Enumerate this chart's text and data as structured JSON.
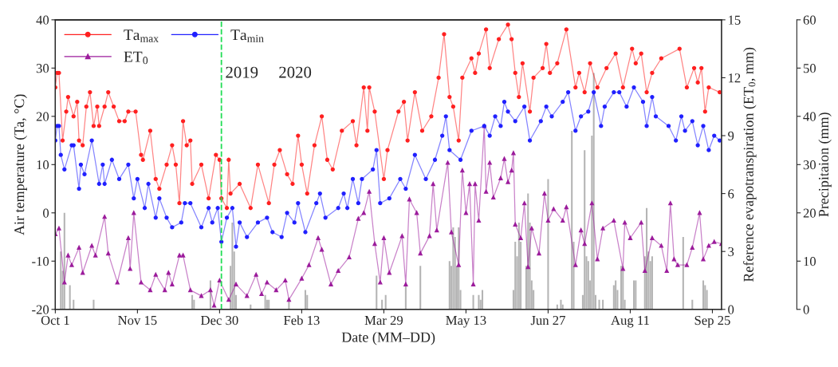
{
  "chart_data": {
    "type": "line",
    "xlabel": "Date (MM–DD)",
    "ylabel": "Air temperature (Ta, °C)",
    "y2label": "Reference evapotranspiration (ET$_{0}$, mm)",
    "y3label": "Precipitaion (mm)",
    "annotations": [
      "2019",
      "2020"
    ],
    "xlim": [
      "2019-10-01",
      "2020-09-30"
    ],
    "xticks": [
      {
        "value": "2019-10-01",
        "label": "Oct 1"
      },
      {
        "value": "2019-11-15",
        "label": "Nov 15"
      },
      {
        "value": "2019-12-30",
        "label": "Dec 30"
      },
      {
        "value": "2020-02-13",
        "label": "Feb 13"
      },
      {
        "value": "2020-03-29",
        "label": "Mar 29"
      },
      {
        "value": "2020-05-13",
        "label": "May 13"
      },
      {
        "value": "2020-06-27",
        "label": "Jun 27"
      },
      {
        "value": "2020-08-11",
        "label": "Aug 11"
      },
      {
        "value": "2020-09-25",
        "label": "Sep 25"
      }
    ],
    "ylim": [
      -20,
      40
    ],
    "yticks": [
      -20,
      -10,
      0,
      10,
      20,
      30,
      40
    ],
    "y2lim": [
      0,
      15
    ],
    "y2ticks": [
      0,
      3,
      6,
      9,
      12,
      15
    ],
    "y3lim": [
      0,
      60
    ],
    "y3ticks": [
      0,
      10,
      20,
      30,
      40,
      50,
      60
    ],
    "legend": "top left",
    "ref_lines": [
      {
        "axis": "x",
        "value": "2019-12-31",
        "color": "#22dd55",
        "line_style": "dashed"
      }
    ],
    "series": [
      {
        "type": "bar",
        "axis": "y3",
        "color": "#b4b4b4",
        "x": [
          "2019-10-04",
          "2019-10-05",
          "2019-10-06",
          "2019-10-09",
          "2019-10-11",
          "2019-10-22",
          "2019-12-15",
          "2019-12-16",
          "2019-12-25",
          "2020-01-05",
          "2020-01-06",
          "2020-01-07",
          "2020-01-08",
          "2020-01-16",
          "2020-01-24",
          "2020-01-25",
          "2020-01-26",
          "2020-02-06",
          "2020-02-15",
          "2020-02-16",
          "2020-03-25",
          "2020-03-28",
          "2020-03-30",
          "2020-04-10",
          "2020-04-18",
          "2020-05-04",
          "2020-05-05",
          "2020-05-06",
          "2020-05-07",
          "2020-05-08",
          "2020-05-09",
          "2020-05-10",
          "2020-05-17",
          "2020-05-20",
          "2020-05-21",
          "2020-05-22",
          "2020-06-08",
          "2020-06-09",
          "2020-06-10",
          "2020-06-11",
          "2020-06-12",
          "2020-06-15",
          "2020-06-16",
          "2020-06-17",
          "2020-06-18",
          "2020-06-19",
          "2020-06-27",
          "2020-07-02",
          "2020-07-04",
          "2020-07-05",
          "2020-07-10",
          "2020-07-11",
          "2020-07-16",
          "2020-07-17",
          "2020-07-18",
          "2020-07-19",
          "2020-07-20",
          "2020-07-21",
          "2020-07-22",
          "2020-07-23",
          "2020-07-25",
          "2020-07-27",
          "2020-08-02",
          "2020-08-03",
          "2020-08-04",
          "2020-08-06",
          "2020-08-07",
          "2020-08-08",
          "2020-08-13",
          "2020-08-14",
          "2020-08-19",
          "2020-08-20",
          "2020-08-21",
          "2020-08-22",
          "2020-08-23",
          "2020-09-09",
          "2020-09-14",
          "2020-09-20",
          "2020-09-21",
          "2020-09-22"
        ],
        "values": [
          12,
          8,
          20,
          5,
          2,
          2,
          3,
          2,
          6,
          9,
          18,
          12,
          3,
          1,
          3,
          2,
          2,
          2,
          4,
          3,
          7,
          2,
          3,
          5,
          9,
          10,
          9,
          17,
          15,
          9,
          17,
          4,
          3,
          3,
          2,
          4,
          4,
          14,
          11,
          18,
          14,
          9,
          24,
          18,
          6,
          4,
          27,
          1,
          2,
          1,
          37,
          14,
          3,
          33,
          11,
          10,
          6,
          36,
          49,
          3,
          2,
          2,
          5,
          6,
          4,
          9,
          9,
          2,
          6,
          6,
          11,
          21,
          12,
          10,
          11,
          15,
          2,
          6,
          5,
          4
        ]
      },
      {
        "name": "Ta$_{max}$",
        "color": "#ff2020",
        "marker": "circle",
        "x": [
          "2019-10-01",
          "2019-10-02",
          "2019-10-03",
          "2019-10-05",
          "2019-10-07",
          "2019-10-08",
          "2019-10-11",
          "2019-10-13",
          "2019-10-14",
          "2019-10-16",
          "2019-10-18",
          "2019-10-20",
          "2019-10-22",
          "2019-10-24",
          "2019-10-25",
          "2019-10-28",
          "2019-10-30",
          "2019-11-02",
          "2019-11-05",
          "2019-11-08",
          "2019-11-10",
          "2019-11-14",
          "2019-11-17",
          "2019-11-18",
          "2019-11-22",
          "2019-11-25",
          "2019-11-27",
          "2019-12-01",
          "2019-12-04",
          "2019-12-06",
          "2019-12-08",
          "2019-12-10",
          "2019-12-12",
          "2019-12-14",
          "2019-12-15",
          "2019-12-20",
          "2019-12-24",
          "2019-12-28",
          "2019-12-30",
          "2019-12-31",
          "2020-01-03",
          "2020-01-04",
          "2020-01-05",
          "2020-01-10",
          "2020-01-16",
          "2020-01-20",
          "2020-01-26",
          "2020-01-29",
          "2020-02-01",
          "2020-02-05",
          "2020-02-08",
          "2020-02-11",
          "2020-02-13",
          "2020-02-16",
          "2020-02-20",
          "2020-02-24",
          "2020-02-27",
          "2020-03-01",
          "2020-03-06",
          "2020-03-12",
          "2020-03-14",
          "2020-03-18",
          "2020-03-20",
          "2020-03-21",
          "2020-03-24",
          "2020-03-29",
          "2020-03-31",
          "2020-04-06",
          "2020-04-09",
          "2020-04-11",
          "2020-04-15",
          "2020-04-19",
          "2020-04-24",
          "2020-04-28",
          "2020-05-01",
          "2020-05-04",
          "2020-05-06",
          "2020-05-09",
          "2020-05-11",
          "2020-05-16",
          "2020-05-18",
          "2020-05-20",
          "2020-05-24",
          "2020-05-26",
          "2020-05-31",
          "2020-06-05",
          "2020-06-07",
          "2020-06-09",
          "2020-06-11",
          "2020-06-13",
          "2020-06-17",
          "2020-06-19",
          "2020-06-24",
          "2020-06-26",
          "2020-06-28",
          "2020-07-02",
          "2020-07-07",
          "2020-07-12",
          "2020-07-14",
          "2020-07-17",
          "2020-07-20",
          "2020-07-24",
          "2020-07-29",
          "2020-08-03",
          "2020-08-07",
          "2020-08-12",
          "2020-08-14",
          "2020-08-17",
          "2020-08-20",
          "2020-08-23",
          "2020-08-28",
          "2020-09-07",
          "2020-09-11",
          "2020-09-15",
          "2020-09-17",
          "2020-09-19",
          "2020-09-21",
          "2020-09-23",
          "2020-09-29"
        ],
        "values": [
          26,
          29,
          29,
          15,
          21,
          24,
          20,
          23,
          15,
          14,
          22,
          25,
          18,
          22,
          18,
          22,
          25,
          22,
          19,
          19,
          21,
          21,
          12,
          11,
          17,
          7,
          5,
          10,
          14,
          10,
          2,
          19,
          14,
          15,
          6,
          10,
          3,
          12,
          11,
          3,
          1,
          11,
          4,
          6,
          1,
          10,
          2,
          10,
          13,
          8,
          6,
          16,
          10,
          4,
          14,
          20,
          11,
          9,
          17,
          19,
          14,
          26,
          17,
          26,
          21,
          7,
          13,
          21,
          23,
          15,
          25,
          17,
          20,
          28,
          37,
          24,
          22,
          15,
          28,
          32,
          29,
          33,
          38,
          30,
          36,
          39,
          36,
          29,
          24,
          31,
          21,
          28,
          30,
          35,
          29,
          31,
          38,
          26,
          29,
          25,
          31,
          26,
          30,
          33,
          26,
          34,
          31,
          33,
          25,
          29,
          32,
          34,
          26,
          30,
          27,
          30,
          21,
          26,
          25
        ]
      },
      {
        "name": "ET$_{0}$",
        "axis": "y2",
        "color": "#9c1c9c",
        "marker": "triangle",
        "x": [
          "2019-10-01",
          "2019-10-03",
          "2019-10-06",
          "2019-10-08",
          "2019-10-10",
          "2019-10-14",
          "2019-10-16",
          "2019-10-21",
          "2019-10-23",
          "2019-10-28",
          "2019-10-30",
          "2019-11-04",
          "2019-11-10",
          "2019-11-11",
          "2019-11-13",
          "2019-11-17",
          "2019-11-22",
          "2019-11-25",
          "2019-11-30",
          "2019-12-02",
          "2019-12-04",
          "2019-12-08",
          "2019-12-10",
          "2019-12-14",
          "2019-12-20",
          "2019-12-25",
          "2019-12-27",
          "2019-12-30",
          "2020-01-04",
          "2020-01-08",
          "2020-01-14",
          "2020-01-19",
          "2020-01-22",
          "2020-01-25",
          "2020-01-30",
          "2020-02-04",
          "2020-02-06",
          "2020-02-13",
          "2020-02-17",
          "2020-02-22",
          "2020-02-24",
          "2020-02-29",
          "2020-03-04",
          "2020-03-10",
          "2020-03-15",
          "2020-03-18",
          "2020-03-21",
          "2020-03-24",
          "2020-03-27",
          "2020-03-29",
          "2020-04-01",
          "2020-04-08",
          "2020-04-10",
          "2020-04-12",
          "2020-04-16",
          "2020-04-18",
          "2020-04-23",
          "2020-04-25",
          "2020-04-27",
          "2020-05-03",
          "2020-05-05",
          "2020-05-09",
          "2020-05-11",
          "2020-05-13",
          "2020-05-15",
          "2020-05-17",
          "2020-05-18",
          "2020-05-20",
          "2020-05-23",
          "2020-05-24",
          "2020-05-26",
          "2020-05-28",
          "2020-06-01",
          "2020-06-03",
          "2020-06-05",
          "2020-06-07",
          "2020-06-08",
          "2020-06-09",
          "2020-06-12",
          "2020-06-14",
          "2020-06-16",
          "2020-06-18",
          "2020-06-22",
          "2020-06-25",
          "2020-06-27",
          "2020-06-30",
          "2020-07-05",
          "2020-07-07",
          "2020-07-12",
          "2020-07-15",
          "2020-07-17",
          "2020-07-21",
          "2020-07-24",
          "2020-07-27",
          "2020-08-02",
          "2020-08-07",
          "2020-08-08",
          "2020-08-11",
          "2020-08-17",
          "2020-08-19",
          "2020-08-23",
          "2020-08-28",
          "2020-08-31",
          "2020-09-02",
          "2020-09-04",
          "2020-09-06",
          "2020-09-11",
          "2020-09-14",
          "2020-09-18",
          "2020-09-20",
          "2020-09-23",
          "2020-09-26",
          "2020-09-30"
        ],
        "values": [
          3.9,
          4.2,
          1.4,
          2.8,
          2.3,
          3.2,
          1.9,
          3.3,
          2.8,
          4.8,
          2.9,
          1.4,
          3.7,
          2.1,
          5.0,
          1.4,
          1.0,
          1.8,
          1.0,
          1.9,
          1.3,
          2.8,
          2.8,
          1.0,
          0.7,
          1.0,
          0.2,
          1.5,
          0.5,
          1.3,
          0.7,
          1.8,
          0.8,
          1.4,
          1.0,
          1.5,
          0.5,
          1.6,
          2.3,
          3.7,
          3.1,
          1.3,
          2.0,
          2.7,
          4.7,
          5.0,
          6.1,
          3.4,
          1.4,
          3.7,
          1.9,
          3.8,
          1.3,
          5.7,
          5.0,
          2.9,
          3.8,
          6.5,
          4.1,
          7.6,
          4.0,
          2.3,
          7.2,
          5.0,
          6.5,
          1.3,
          6.5,
          4.6,
          9.5,
          6.1,
          7.6,
          5.8,
          6.8,
          7.8,
          6.6,
          7.2,
          8.1,
          4.4,
          3.7,
          5.5,
          2.2,
          4.2,
          2.9,
          6.0,
          4.6,
          5.2,
          4.6,
          5.3,
          2.3,
          4.1,
          3.4,
          5.5,
          2.6,
          4.2,
          4.6,
          2.1,
          4.5,
          3.7,
          4.5,
          2.0,
          3.7,
          3.3,
          2.0,
          5.5,
          2.6,
          2.3,
          2.3,
          3.2,
          5.0,
          2.6,
          3.3,
          3.5,
          3.4
        ]
      },
      {
        "name": "Ta$_{min}$",
        "color": "#2020ff",
        "marker": "circle",
        "x": [
          "2019-10-01",
          "2019-10-02",
          "2019-10-03",
          "2019-10-04",
          "2019-10-06",
          "2019-10-10",
          "2019-10-11",
          "2019-10-14",
          "2019-10-15",
          "2019-10-17",
          "2019-10-21",
          "2019-10-25",
          "2019-10-27",
          "2019-10-28",
          "2019-11-01",
          "2019-11-05",
          "2019-11-10",
          "2019-11-13",
          "2019-11-15",
          "2019-11-19",
          "2019-11-21",
          "2019-11-25",
          "2019-11-27",
          "2019-12-01",
          "2019-12-04",
          "2019-12-09",
          "2019-12-11",
          "2019-12-14",
          "2019-12-20",
          "2019-12-24",
          "2019-12-26",
          "2019-12-29",
          "2019-12-31",
          "2020-01-03",
          "2020-01-06",
          "2020-01-08",
          "2020-01-10",
          "2020-01-14",
          "2020-01-20",
          "2020-01-25",
          "2020-01-28",
          "2020-02-02",
          "2020-02-05",
          "2020-02-09",
          "2020-02-11",
          "2020-02-15",
          "2020-02-21",
          "2020-02-23",
          "2020-02-26",
          "2020-03-04",
          "2020-03-07",
          "2020-03-09",
          "2020-03-12",
          "2020-03-15",
          "2020-03-17",
          "2020-03-23",
          "2020-03-25",
          "2020-03-27",
          "2020-04-01",
          "2020-04-07",
          "2020-04-10",
          "2020-04-15",
          "2020-04-21",
          "2020-04-26",
          "2020-04-30",
          "2020-05-02",
          "2020-05-04",
          "2020-05-10",
          "2020-05-16",
          "2020-05-23",
          "2020-05-26",
          "2020-05-29",
          "2020-06-01",
          "2020-06-03",
          "2020-06-05",
          "2020-06-09",
          "2020-06-14",
          "2020-06-17",
          "2020-06-23",
          "2020-06-26",
          "2020-06-29",
          "2020-07-05",
          "2020-07-08",
          "2020-07-12",
          "2020-07-15",
          "2020-07-19",
          "2020-07-22",
          "2020-07-26",
          "2020-07-28",
          "2020-08-02",
          "2020-08-05",
          "2020-08-09",
          "2020-08-13",
          "2020-08-18",
          "2020-08-20",
          "2020-08-23",
          "2020-08-25",
          "2020-09-01",
          "2020-09-05",
          "2020-09-08",
          "2020-09-10",
          "2020-09-14",
          "2020-09-17",
          "2020-09-20",
          "2020-09-23",
          "2020-09-26",
          "2020-09-29"
        ],
        "values": [
          15,
          18,
          18,
          12,
          9,
          14,
          14,
          5,
          10,
          8,
          15,
          6,
          10,
          6,
          11,
          7,
          10,
          3,
          7,
          1,
          6,
          -1,
          3,
          -1,
          -3,
          -2,
          2,
          2,
          -3,
          1,
          -2,
          1,
          -6,
          -1,
          1,
          -7,
          -2,
          -5,
          -2,
          -1,
          -4,
          -5,
          0,
          -2,
          2,
          -4,
          2,
          4,
          -1,
          1,
          4,
          1,
          7,
          2,
          7,
          9,
          13,
          2,
          3,
          7,
          5,
          12,
          7,
          11,
          16,
          20,
          13,
          11,
          17,
          18,
          16,
          20,
          18,
          23,
          21,
          19,
          22,
          15,
          19,
          22,
          20,
          23,
          25,
          17,
          20,
          21,
          25,
          18,
          22,
          25,
          25,
          22,
          26,
          23,
          18,
          24,
          20,
          18,
          15,
          20,
          17,
          19,
          14,
          18,
          13,
          16,
          15
        ]
      }
    ]
  }
}
